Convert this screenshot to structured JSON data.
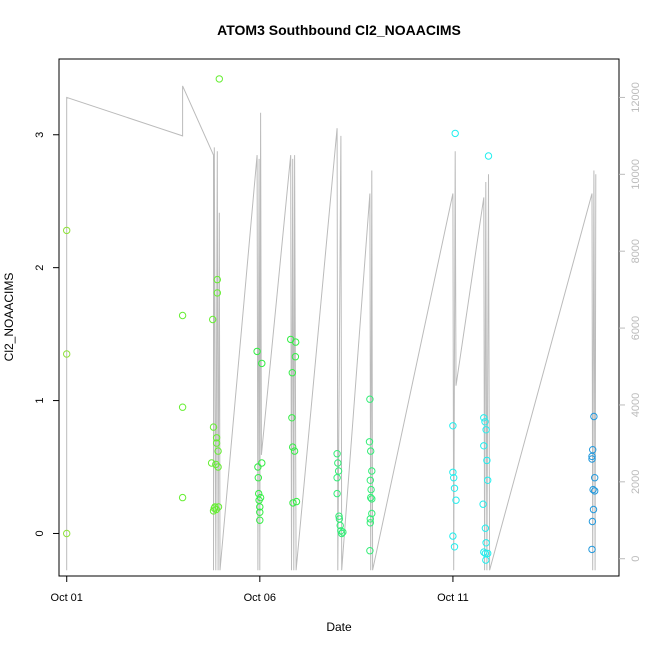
{
  "chart_data": {
    "type": "scatter",
    "title": "ATOM3 Southbound Cl2_NOAACIMS",
    "xlabel": "Date",
    "ylabel": "Cl2_NOAACIMS",
    "x_ticks": [
      "Oct 01",
      "Oct 06",
      "Oct 11"
    ],
    "y_ticks": [
      "0",
      "1",
      "2",
      "3"
    ],
    "y2_ticks": [
      "0",
      "2000",
      "4000",
      "6000",
      "8000",
      "10000",
      "12000"
    ],
    "xlim": [
      -0.2,
      14.3
    ],
    "ylim": [
      -0.32,
      3.57
    ],
    "y2lim": [
      -450,
      13000
    ],
    "grid": false,
    "legend": "none",
    "series": [
      {
        "color": "#8fe23a",
        "points": [
          [
            0.0,
            2.28
          ],
          [
            0.0,
            1.35
          ],
          [
            0.0,
            0.0
          ]
        ]
      },
      {
        "color": "#66ee33",
        "points": [
          [
            3.0,
            1.64
          ],
          [
            3.0,
            0.95
          ],
          [
            3.0,
            0.27
          ],
          [
            3.75,
            0.53
          ],
          [
            3.78,
            1.61
          ],
          [
            3.8,
            0.8
          ],
          [
            3.82,
            0.19
          ],
          [
            3.84,
            0.2
          ],
          [
            3.86,
            0.52
          ],
          [
            3.88,
            0.72
          ],
          [
            3.88,
            0.68
          ],
          [
            3.9,
            1.91
          ],
          [
            3.9,
            1.81
          ],
          [
            3.92,
            0.62
          ],
          [
            3.92,
            0.5
          ],
          [
            3.93,
            0.2
          ],
          [
            3.95,
            3.42
          ],
          [
            3.8,
            0.17
          ],
          [
            3.87,
            0.18
          ]
        ]
      },
      {
        "color": "#33ee44",
        "points": [
          [
            4.93,
            1.37
          ],
          [
            4.95,
            0.5
          ],
          [
            4.96,
            0.42
          ],
          [
            4.97,
            0.3
          ],
          [
            4.98,
            0.25
          ],
          [
            5.0,
            0.2
          ],
          [
            5.0,
            0.16
          ],
          [
            5.0,
            0.1
          ],
          [
            5.02,
            0.27
          ],
          [
            5.05,
            1.28
          ],
          [
            5.05,
            0.53
          ],
          [
            5.8,
            1.46
          ],
          [
            5.83,
            0.87
          ],
          [
            5.84,
            1.21
          ],
          [
            5.85,
            0.65
          ],
          [
            5.86,
            0.23
          ],
          [
            5.9,
            0.62
          ],
          [
            5.92,
            1.33
          ],
          [
            5.93,
            1.44
          ],
          [
            5.95,
            0.24
          ]
        ]
      },
      {
        "color": "#33ee77",
        "points": [
          [
            7.0,
            0.6
          ],
          [
            7.02,
            0.53
          ],
          [
            7.04,
            0.47
          ],
          [
            7.0,
            0.42
          ],
          [
            7.0,
            0.3
          ],
          [
            7.05,
            0.13
          ],
          [
            7.06,
            0.11
          ],
          [
            7.08,
            0.06
          ],
          [
            7.1,
            0.02
          ],
          [
            7.12,
            0.0
          ],
          [
            7.15,
            0.01
          ],
          [
            7.85,
            1.01
          ],
          [
            7.84,
            0.69
          ],
          [
            7.87,
            0.62
          ],
          [
            7.9,
            0.47
          ],
          [
            7.86,
            0.4
          ],
          [
            7.88,
            0.33
          ],
          [
            7.87,
            0.27
          ],
          [
            7.9,
            0.26
          ],
          [
            7.86,
            0.11
          ],
          [
            7.86,
            0.08
          ],
          [
            7.9,
            0.15
          ],
          [
            7.85,
            -0.13
          ]
        ]
      },
      {
        "color": "#22eeee",
        "points": [
          [
            10.0,
            0.46
          ],
          [
            10.02,
            0.42
          ],
          [
            10.04,
            0.34
          ],
          [
            10.0,
            0.81
          ],
          [
            10.06,
            3.01
          ],
          [
            10.08,
            0.25
          ],
          [
            10.0,
            -0.02
          ],
          [
            10.04,
            -0.1
          ],
          [
            10.8,
            0.87
          ],
          [
            10.83,
            0.84
          ],
          [
            10.86,
            0.78
          ],
          [
            10.8,
            0.66
          ],
          [
            10.88,
            0.55
          ],
          [
            10.9,
            0.4
          ],
          [
            10.78,
            0.22
          ],
          [
            10.84,
            0.04
          ],
          [
            10.86,
            -0.07
          ],
          [
            10.8,
            -0.14
          ],
          [
            10.84,
            -0.15
          ],
          [
            10.9,
            -0.15
          ],
          [
            10.85,
            -0.2
          ],
          [
            10.92,
            2.84
          ]
        ]
      },
      {
        "color": "#2299dd",
        "points": [
          [
            13.6,
            0.58
          ],
          [
            13.6,
            0.56
          ],
          [
            13.62,
            0.63
          ],
          [
            13.65,
            0.88
          ],
          [
            13.67,
            0.42
          ],
          [
            13.63,
            0.33
          ],
          [
            13.67,
            0.32
          ],
          [
            13.64,
            0.18
          ],
          [
            13.61,
            0.09
          ],
          [
            13.6,
            -0.12
          ]
        ]
      }
    ],
    "secondary_line": {
      "color": "#bbbbbb",
      "points": [
        [
          0.0,
          -300
        ],
        [
          0.0,
          12000
        ],
        [
          3.0,
          11000
        ],
        [
          3.0,
          12300
        ],
        [
          3.8,
          10500
        ],
        [
          3.8,
          -300
        ],
        [
          3.82,
          10700
        ],
        [
          3.86,
          -300
        ],
        [
          3.9,
          10600
        ],
        [
          3.92,
          -300
        ],
        [
          3.95,
          9000
        ],
        [
          3.97,
          -300
        ],
        [
          4.93,
          10500
        ],
        [
          4.95,
          -300
        ],
        [
          4.98,
          10400
        ],
        [
          5.0,
          -300
        ],
        [
          5.02,
          11600
        ],
        [
          5.04,
          2700
        ],
        [
          5.8,
          10500
        ],
        [
          5.82,
          -300
        ],
        [
          5.85,
          10400
        ],
        [
          5.88,
          -300
        ],
        [
          5.9,
          10500
        ],
        [
          5.94,
          -300
        ],
        [
          7.0,
          11200
        ],
        [
          7.02,
          -300
        ],
        [
          7.1,
          11000
        ],
        [
          7.12,
          -300
        ],
        [
          7.85,
          9500
        ],
        [
          7.87,
          -300
        ],
        [
          7.9,
          10100
        ],
        [
          7.92,
          -300
        ],
        [
          10.0,
          9500
        ],
        [
          10.02,
          -300
        ],
        [
          10.06,
          10600
        ],
        [
          10.08,
          4500
        ],
        [
          10.8,
          9400
        ],
        [
          10.82,
          -300
        ],
        [
          10.85,
          9800
        ],
        [
          10.88,
          -300
        ],
        [
          10.92,
          10000
        ],
        [
          10.95,
          -300
        ],
        [
          13.6,
          9500
        ],
        [
          13.62,
          -300
        ],
        [
          13.65,
          10100
        ],
        [
          13.68,
          -300
        ],
        [
          13.7,
          10000
        ]
      ]
    }
  }
}
